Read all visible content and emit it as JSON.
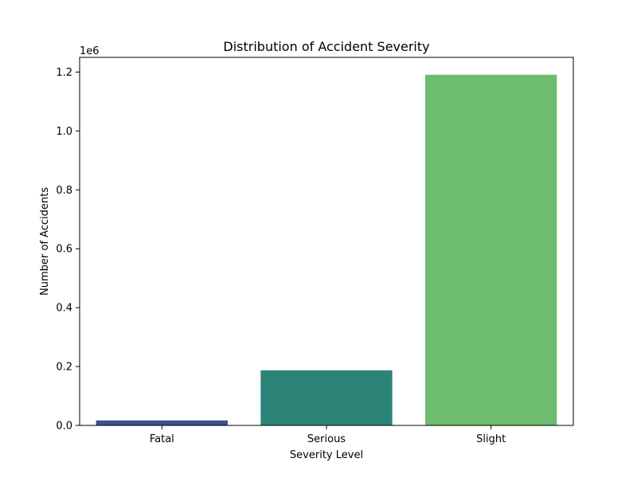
{
  "chart_data": {
    "type": "bar",
    "title": "Distribution of Accident Severity",
    "xlabel": "Severity Level",
    "ylabel": "Number of Accidents",
    "categories": [
      "Fatal",
      "Serious",
      "Slight"
    ],
    "values": [
      17000,
      187000,
      1191000
    ],
    "colors": [
      "#3b528b",
      "#2c8479",
      "#6cbd6e"
    ],
    "ylim": [
      0,
      1250000
    ],
    "yticks": [
      0,
      200000,
      400000,
      600000,
      800000,
      1000000,
      1200000
    ],
    "ytick_labels": [
      "0.0",
      "0.2",
      "0.4",
      "0.6",
      "0.8",
      "1.0",
      "1.2"
    ],
    "y_offset_label": "1e6",
    "grid": false
  }
}
